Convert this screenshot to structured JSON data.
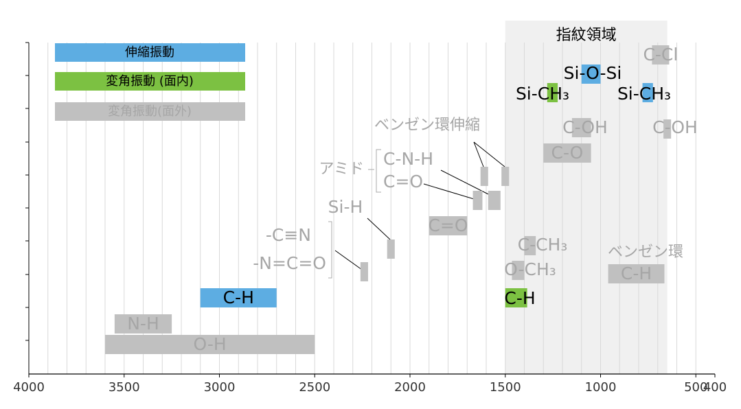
{
  "chart_data": {
    "type": "range",
    "fingerprint": {
      "label": "指紋領域",
      "range": [
        1500,
        650
      ]
    },
    "series": [
      {
        "name": "伸縮振動",
        "color": "#5dade2"
      },
      {
        "name": "変角振動 (面内)",
        "color": "#7cc142"
      },
      {
        "name": "変角振動(面外)",
        "color": "#c0c0c0"
      }
    ],
    "bands": [
      {
        "label": "C-Cl",
        "series": 2,
        "range": [
          730,
          640
        ]
      },
      {
        "label": "Si-O-Si",
        "series": 0,
        "range": [
          1100,
          1000
        ]
      },
      {
        "label": "Si-CH₃",
        "series": 1,
        "range": [
          1280,
          1225
        ]
      },
      {
        "label": "Si-CH₃",
        "series": 0,
        "range": [
          780,
          725
        ]
      },
      {
        "label": "C-OH",
        "series": 2,
        "range": [
          1150,
          1050
        ]
      },
      {
        "label": "C-OH",
        "series": 2,
        "range": [
          670,
          630
        ]
      },
      {
        "label": "C-O",
        "series": 2,
        "range": [
          1300,
          1050
        ]
      },
      {
        "label": null,
        "series": 2,
        "range": [
          1630,
          1590
        ]
      },
      {
        "label": null,
        "series": 2,
        "range": [
          1520,
          1480
        ]
      },
      {
        "label": null,
        "series": 2,
        "range": [
          1670,
          1620
        ]
      },
      {
        "label": null,
        "series": 2,
        "range": [
          1590,
          1525
        ]
      },
      {
        "label": "Si-H",
        "series": 2,
        "range": [
          2120,
          2080
        ]
      },
      {
        "label": null,
        "series": 2,
        "range": [
          2260,
          2220
        ]
      },
      {
        "label": "C=O",
        "series": 2,
        "range": [
          1900,
          1700
        ]
      },
      {
        "label": "C-CH₃",
        "series": 2,
        "range": [
          1400,
          1340
        ]
      },
      {
        "label": "O-CH₃",
        "series": 2,
        "range": [
          1465,
          1400
        ]
      },
      {
        "label": "C-H",
        "series": 2,
        "range": [
          960,
          665
        ]
      },
      {
        "label": "C-H",
        "series": 0,
        "range": [
          3100,
          2700
        ]
      },
      {
        "label": "C-H",
        "series": 1,
        "range": [
          1500,
          1385
        ]
      },
      {
        "label": "N-H",
        "series": 2,
        "range": [
          3550,
          3250
        ]
      },
      {
        "label": "O-H",
        "series": 2,
        "range": [
          3600,
          2500
        ]
      }
    ],
    "annotations": [
      "ベンゼン環伸縮",
      "アミド",
      "C-N-H",
      "C=O",
      "-C≡N",
      "-N=C=O",
      "ベンゼン環"
    ],
    "xlim": [
      4000,
      400
    ],
    "xticks": [
      4000,
      3500,
      3000,
      2500,
      2000,
      1500,
      1000,
      500,
      400
    ],
    "xgrid": [
      3900,
      3800,
      3700,
      3600,
      3500,
      3400,
      3300,
      3200,
      3100,
      3000,
      2900,
      2800,
      2700,
      2600,
      2500,
      2400,
      2300,
      2200,
      2100,
      2000,
      1900,
      1800,
      1700,
      1600,
      1500,
      1400,
      1300,
      1200,
      1100,
      1000,
      900,
      800,
      700,
      600,
      500
    ],
    "grid": true
  }
}
